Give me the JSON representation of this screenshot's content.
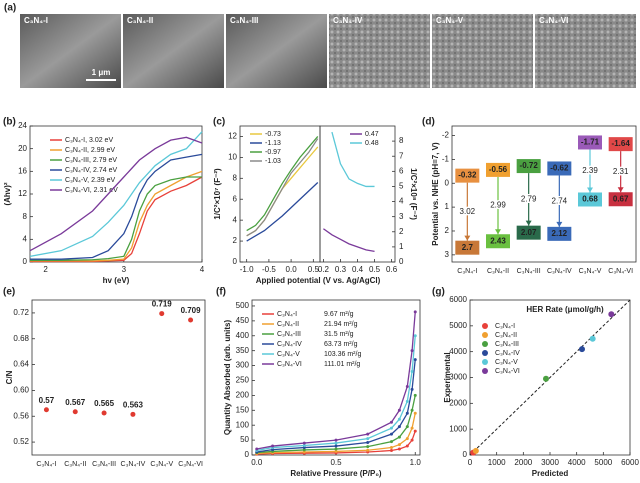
{
  "sem": {
    "panel": "(a)",
    "images": [
      "C₃N₄-I",
      "C₃N₄-II",
      "C₃N₄-III",
      "C₃N₄-IV",
      "C₃N₄-V",
      "C₃N₄-VI"
    ],
    "scale_bar": "1 μm"
  },
  "chart_data": [
    {
      "panel": "(b)",
      "type": "line",
      "x_label": "hv (eV)",
      "y_label": "(Ahv)²",
      "x": [
        1.8,
        2.2,
        2.6,
        2.8,
        3.0,
        3.1,
        3.2,
        3.3,
        3.4,
        3.6,
        3.8,
        4.0
      ],
      "series": [
        {
          "name": "C₃N₄-I, 3.02 eV",
          "color": "#e8413a",
          "values": [
            0.1,
            0.1,
            0.1,
            0.2,
            0.3,
            1.5,
            5,
            9,
            11,
            12.5,
            13.5,
            15
          ]
        },
        {
          "name": "C₃N₄-II, 2.99 eV",
          "color": "#f0a030",
          "values": [
            0.2,
            0.2,
            0.2,
            0.3,
            0.5,
            2.5,
            7,
            10,
            12,
            13.5,
            15,
            16
          ]
        },
        {
          "name": "C₃N₄-III, 2.79 eV",
          "color": "#4aa040",
          "values": [
            0.3,
            0.3,
            0.4,
            0.6,
            1,
            4,
            9,
            12,
            13.5,
            14.5,
            15,
            15
          ]
        },
        {
          "name": "C₃N₄-IV, 2.74 eV",
          "color": "#2a4a9a",
          "values": [
            0.5,
            0.5,
            0.8,
            2,
            5,
            8,
            12,
            14.5,
            16,
            18,
            18.5,
            19
          ]
        },
        {
          "name": "C₃N₄-V, 2.39 eV",
          "color": "#5bc8d8",
          "values": [
            1,
            2,
            4.5,
            7,
            10,
            12,
            14,
            15.5,
            17,
            19,
            20,
            23
          ]
        },
        {
          "name": "C₃N₄-VI, 2.31 eV",
          "color": "#7a3a9a",
          "values": [
            2,
            5,
            9,
            12,
            15,
            16.5,
            18,
            19,
            20,
            21.5,
            22,
            21
          ]
        }
      ],
      "xlim": [
        1.8,
        4
      ],
      "xticks": [
        2,
        3,
        4
      ],
      "ylim": [
        0,
        24
      ],
      "yticks": [
        0,
        4,
        8,
        12,
        16,
        20,
        24
      ]
    },
    {
      "panel": "(c)",
      "type": "line",
      "x_label": "Applied potential (V vs. Ag/AgCl)",
      "y_label": "1/C²×10⁷ (F⁻²)",
      "x": [
        -1.0,
        -0.8,
        -0.6,
        -0.4,
        -0.2,
        0,
        0.2,
        0.4,
        0.6
      ],
      "series": [
        {
          "name": "-0.73",
          "color": "#e8c840",
          "values": [
            2.5,
            3,
            4,
            5.5,
            7,
            8,
            9,
            10,
            11
          ]
        },
        {
          "name": "-1.13",
          "color": "#2a4a9a",
          "values": [
            2,
            2.5,
            3,
            3.7,
            4.4,
            5.2,
            6,
            6.8,
            7.6
          ]
        },
        {
          "name": "-0.97",
          "color": "#4aa040",
          "values": [
            3,
            3.5,
            4.5,
            6,
            7.5,
            8.8,
            10,
            11,
            12
          ]
        },
        {
          "name": "-1.03",
          "color": "#8a8a8a",
          "values": [
            2.5,
            3,
            4,
            5.5,
            7,
            8.5,
            9.5,
            10.5,
            11.8
          ]
        }
      ],
      "xlim": [
        -1.15,
        0.65
      ],
      "xticks": [
        {
          "value": -1,
          "label": "-1.0"
        },
        -0.5,
        {
          "value": 0,
          "label": "0.0"
        },
        0.5
      ],
      "ylim": [
        0,
        13
      ],
      "yticks": [
        0,
        2,
        4,
        6,
        8,
        10,
        12
      ]
    },
    {
      "type": "line",
      "y_label": "1/C²×10⁸ (F⁻²)",
      "y_axis_side": "right",
      "x": [
        0.2,
        0.25,
        0.3,
        0.35,
        0.4,
        0.45,
        0.5
      ],
      "series": [
        {
          "name": "0.47",
          "color": "#7a3a9a",
          "values": [
            2.2,
            1.8,
            1.5,
            1.2,
            1.0,
            0.8,
            0.7
          ]
        },
        {
          "name": "0.48",
          "color": "#5bc8d8",
          "values": [
            null,
            8.6,
            6.5,
            5.5,
            5.2,
            5.0,
            5.0
          ]
        }
      ],
      "xlim": [
        0.18,
        0.62
      ],
      "xticks": [
        0.2,
        0.3,
        0.4,
        0.5,
        0.6
      ],
      "ylim": [
        0,
        9
      ],
      "yticks": [
        0,
        1,
        2,
        3,
        4,
        5,
        6,
        7,
        8
      ]
    },
    {
      "panel": "(d)",
      "type": "band",
      "y_label": "Potential vs. NHE (pH=7, V)",
      "y_inverted": true,
      "categories": [
        "C₃N₄-I",
        "C₃N₄-II",
        "C₃N₄-III",
        "C₃N₄-IV",
        "C₃N₄-V",
        "C₃N₄-VI"
      ],
      "cb": [
        -0.32,
        -0.56,
        -0.72,
        -0.62,
        -1.71,
        -1.64
      ],
      "vb": [
        2.7,
        2.43,
        2.07,
        2.12,
        0.68,
        0.67
      ],
      "gaps": [
        3.02,
        2.99,
        2.79,
        2.74,
        2.39,
        2.31
      ],
      "cb_colors": [
        "#e89040",
        "#f0a030",
        "#4aa040",
        "#3a6ab8",
        "#9a5ab8",
        "#e04848"
      ],
      "vb_colors": [
        "#c87838",
        "#6ac040",
        "#2a6a4a",
        "#3a6ab8",
        "#5bc8d8",
        "#c83040"
      ],
      "ylim": [
        -2.4,
        3.3
      ],
      "yticks": [
        -2,
        -1,
        0,
        1,
        2,
        3
      ]
    },
    {
      "panel": "(e)",
      "type": "scatter",
      "y_label": "C/N",
      "color": "#e03a30",
      "categories": [
        "C₃N₄-I",
        "C₃N₄-II",
        "C₃N₄-III",
        "C₃N₄-IV",
        "C₃N₄-V",
        "C₃N₄-VI"
      ],
      "values": [
        0.57,
        0.567,
        0.565,
        0.563,
        0.719,
        0.709
      ],
      "ylim": [
        0.5,
        0.74
      ],
      "yticks": [
        0.52,
        0.56,
        {
          "value": 0.6,
          "label": "0.60"
        },
        0.64,
        0.68,
        0.72
      ]
    },
    {
      "panel": "(f)",
      "type": "line",
      "markers": true,
      "x_label": "Relative Pressure (P/P₀)",
      "y_label": "Quantity Absorbed (arb. units)",
      "x": [
        0,
        0.1,
        0.3,
        0.5,
        0.7,
        0.85,
        0.9,
        0.95,
        0.98,
        1.0
      ],
      "series": [
        {
          "name": "C₃N₄-I",
          "surface_area": "9.67 m²/g",
          "color": "#e8413a",
          "values": [
            3,
            5,
            6,
            7,
            10,
            15,
            20,
            30,
            50,
            80
          ]
        },
        {
          "name": "C₃N₄-II",
          "surface_area": "21.94 m²/g",
          "color": "#f0a030",
          "values": [
            5,
            8,
            10,
            12,
            16,
            25,
            35,
            55,
            90,
            140
          ]
        },
        {
          "name": "C₃N₄-III",
          "surface_area": "31.5 m²/g",
          "color": "#4aa040",
          "values": [
            8,
            12,
            17,
            20,
            28,
            45,
            60,
            95,
            150,
            200
          ]
        },
        {
          "name": "C₃N₄-IV",
          "surface_area": "63.73 m²/g",
          "color": "#2a4a9a",
          "values": [
            10,
            18,
            25,
            30,
            42,
            70,
            95,
            140,
            220,
            320
          ]
        },
        {
          "name": "C₃N₄-V",
          "surface_area": "103.36 m²/g",
          "color": "#5bc8d8",
          "values": [
            15,
            25,
            32,
            40,
            55,
            90,
            120,
            180,
            280,
            400
          ]
        },
        {
          "name": "C₃N₄-VI",
          "surface_area": "111.01 m²/g",
          "color": "#7a3a9a",
          "values": [
            20,
            30,
            40,
            50,
            70,
            110,
            150,
            230,
            350,
            480
          ]
        }
      ],
      "xlim": [
        -0.03,
        1.03
      ],
      "xticks": [
        {
          "value": 0,
          "label": "0.0"
        },
        0.5,
        {
          "value": 1,
          "label": "1.0"
        }
      ],
      "ylim": [
        0,
        520
      ],
      "yticks": [
        0,
        50,
        100,
        150,
        200,
        250,
        300,
        350,
        400,
        450,
        500
      ]
    },
    {
      "panel": "(g)",
      "type": "scatter",
      "x_label": "Predicted",
      "y_label": "Experimental",
      "legend_title": "HER Rate (μmol/g/h)",
      "series": [
        {
          "name": "C₃N₄-I",
          "color": "#e8413a",
          "x": [
            120
          ],
          "values": [
            90
          ]
        },
        {
          "name": "C₃N₄-II",
          "color": "#f0a030",
          "x": [
            220
          ],
          "values": [
            160
          ]
        },
        {
          "name": "C₃N₄-III",
          "color": "#4aa040",
          "x": [
            2850
          ],
          "values": [
            2950
          ]
        },
        {
          "name": "C₃N₄-IV",
          "color": "#2a4a9a",
          "x": [
            4200
          ],
          "values": [
            4100
          ]
        },
        {
          "name": "C₃N₄-V",
          "color": "#5bc8d8",
          "x": [
            4600
          ],
          "values": [
            4500
          ]
        },
        {
          "name": "C₃N₄-VI",
          "color": "#7a3a9a",
          "x": [
            5300
          ],
          "values": [
            5450
          ]
        }
      ],
      "xlim": [
        0,
        6000
      ],
      "xticks": [
        0,
        1000,
        2000,
        3000,
        4000,
        5000,
        6000
      ],
      "ylim": [
        0,
        6000
      ],
      "yticks": [
        0,
        1000,
        2000,
        3000,
        4000,
        5000,
        6000
      ]
    }
  ]
}
